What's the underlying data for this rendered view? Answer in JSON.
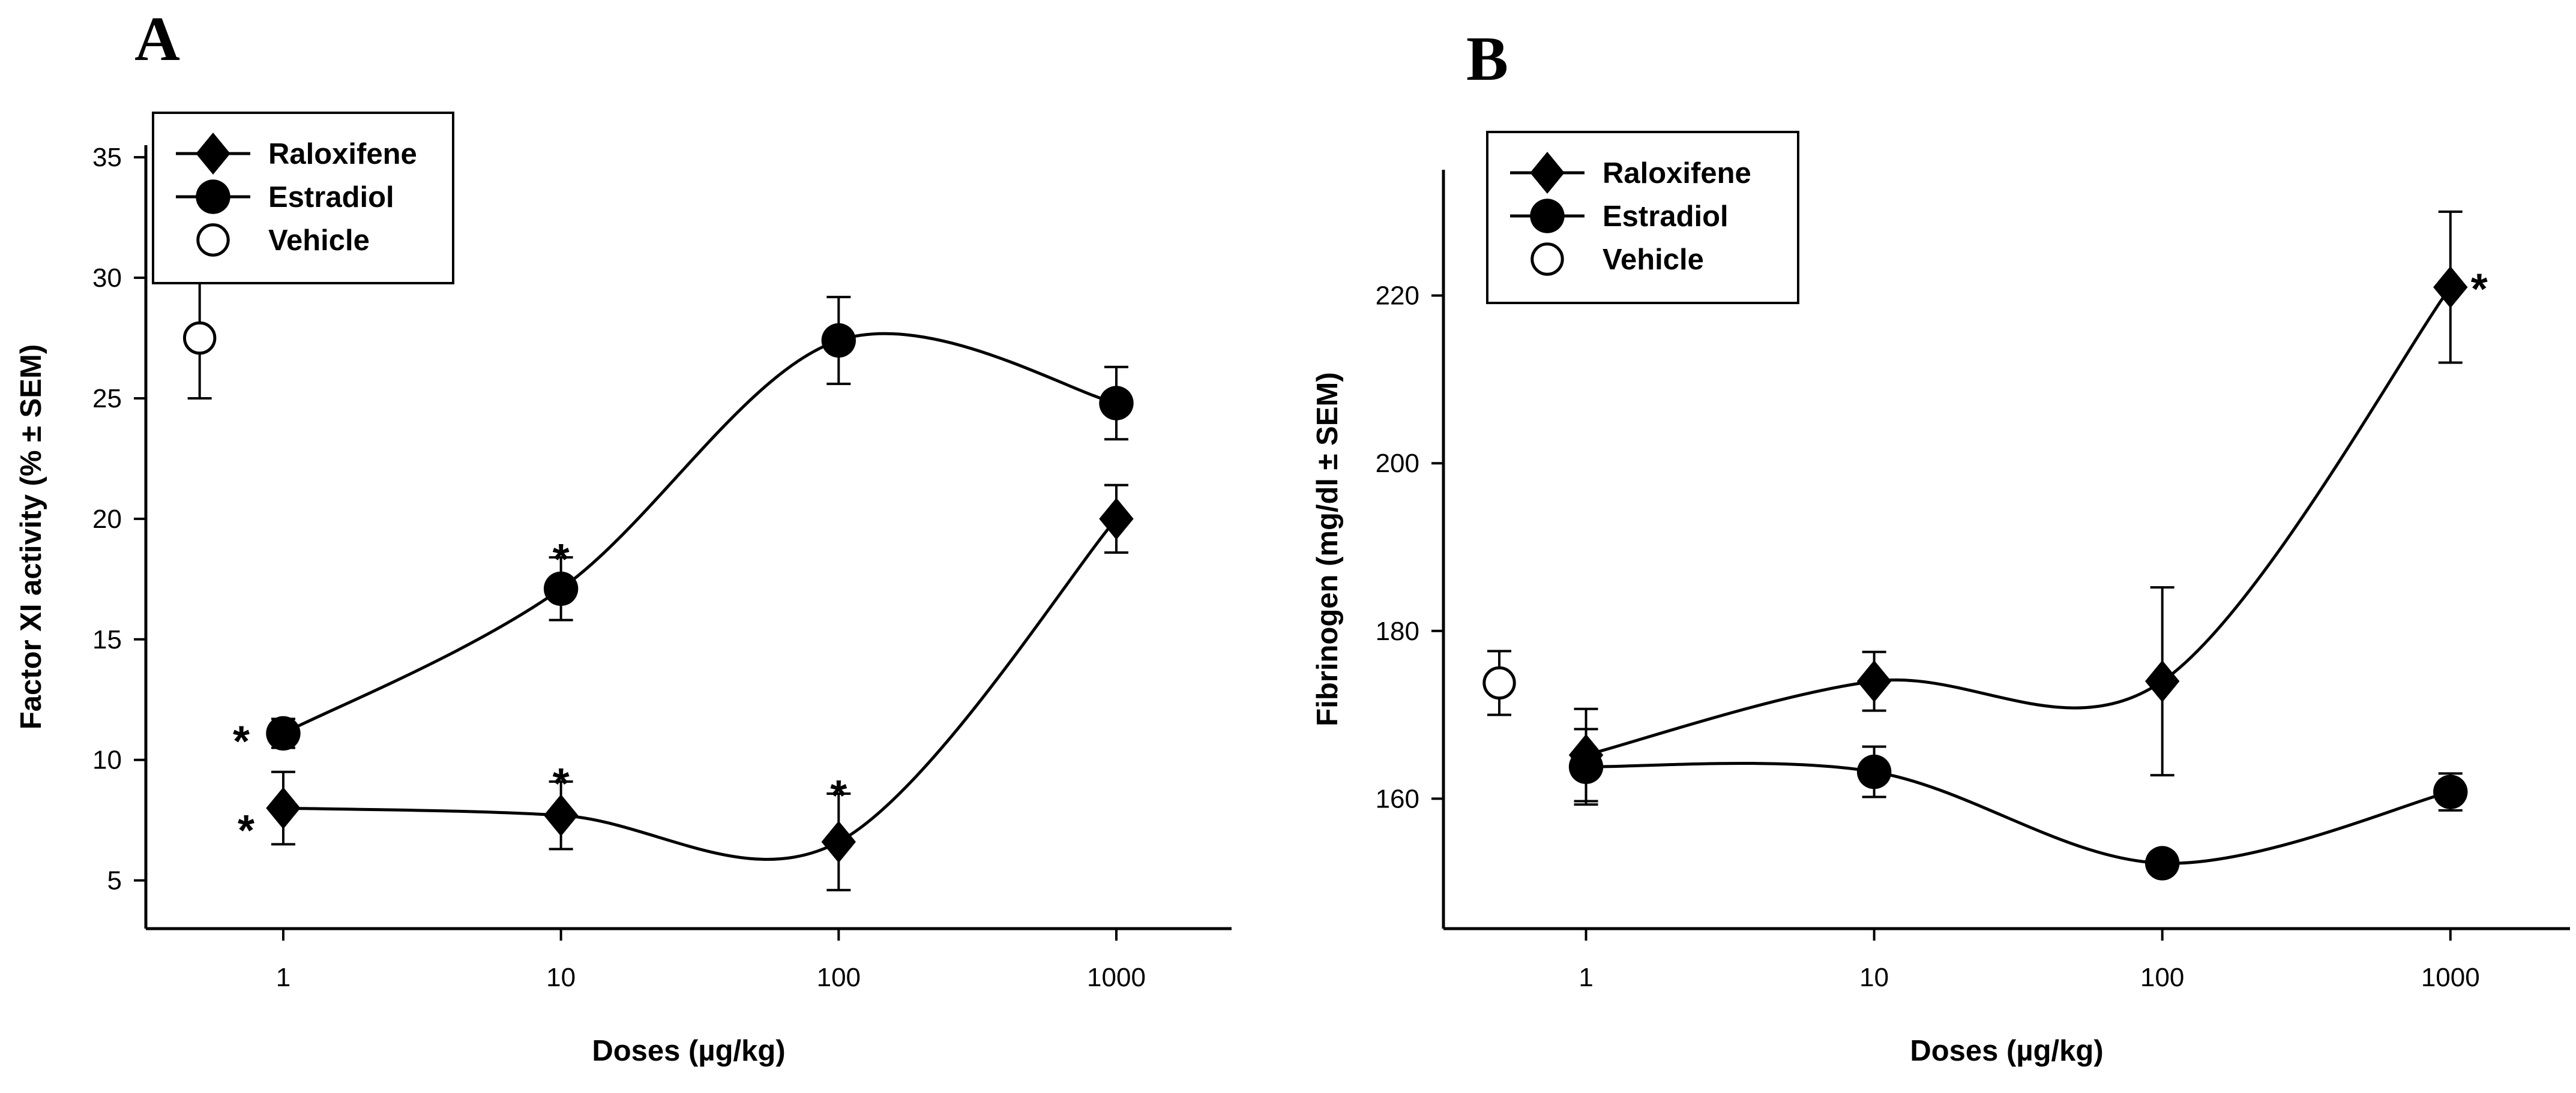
{
  "chart_data": [
    {
      "type": "line",
      "panel_label": "A",
      "title": "",
      "xlabel": "Doses (µg/kg)",
      "ylabel": "Factor XI activity (% ± SEM)",
      "xscale": "log",
      "xlim": [
        0.32,
        2600
      ],
      "ylim": [
        3,
        35.5
      ],
      "xticks": [
        1,
        10,
        100,
        1000
      ],
      "xtick_labels": [
        "1",
        "10",
        "100",
        "1000"
      ],
      "yticks": [
        5,
        10,
        15,
        20,
        25,
        30,
        35
      ],
      "ytick_labels": [
        "5",
        "10",
        "15",
        "20",
        "25",
        "30",
        "35"
      ],
      "grid": false,
      "legend_position": "top-left",
      "series": [
        {
          "name": "Raloxifene",
          "marker": "diamond",
          "x": [
            1,
            10,
            100,
            1000
          ],
          "y": [
            8.0,
            7.7,
            6.6,
            20.0
          ],
          "err": [
            1.5,
            1.4,
            2.0,
            1.4
          ]
        },
        {
          "name": "Estradiol",
          "marker": "circle",
          "x": [
            1,
            10,
            100,
            1000
          ],
          "y": [
            11.1,
            17.1,
            27.4,
            24.8
          ],
          "err": [
            0.6,
            1.3,
            1.8,
            1.5
          ]
        },
        {
          "name": "Vehicle",
          "marker": "open-circle",
          "x": [
            0.5
          ],
          "y": [
            27.5
          ],
          "err": [
            2.5
          ]
        }
      ],
      "annotations": [
        {
          "text": "*",
          "series": "Raloxifene",
          "x": 1
        },
        {
          "text": "*",
          "series": "Raloxifene",
          "x": 10
        },
        {
          "text": "*",
          "series": "Raloxifene",
          "x": 100
        },
        {
          "text": "*",
          "series": "Estradiol",
          "x": 1
        },
        {
          "text": "*",
          "series": "Estradiol",
          "x": 10
        }
      ]
    },
    {
      "type": "line",
      "panel_label": "B",
      "title": "",
      "xlabel": "Doses (µg/kg)",
      "ylabel": "Fibrinogen (mg/dl ± SEM)",
      "xscale": "log",
      "xlim": [
        0.32,
        2600
      ],
      "ylim": [
        144.5,
        235
      ],
      "xticks": [
        1,
        10,
        100,
        1000
      ],
      "xtick_labels": [
        "1",
        "10",
        "100",
        "1000"
      ],
      "yticks": [
        160,
        180,
        200,
        220
      ],
      "ytick_labels": [
        "160",
        "180",
        "200",
        "220"
      ],
      "grid": false,
      "legend_position": "top-left",
      "series": [
        {
          "name": "Raloxifene",
          "marker": "diamond",
          "x": [
            1,
            10,
            100,
            1000
          ],
          "y": [
            165.2,
            174.0,
            174.0,
            221.0
          ],
          "err": [
            5.5,
            3.5,
            11.2,
            9.0
          ]
        },
        {
          "name": "Estradiol",
          "marker": "circle",
          "x": [
            1,
            10,
            100,
            1000
          ],
          "y": [
            163.8,
            163.2,
            152.3,
            160.8
          ],
          "err": [
            4.5,
            3.0,
            1.2,
            2.2
          ]
        },
        {
          "name": "Vehicle",
          "marker": "open-circle",
          "x": [
            0.5
          ],
          "y": [
            173.8
          ],
          "err": [
            3.8
          ]
        }
      ],
      "annotations": [
        {
          "text": "*",
          "series": "Raloxifene",
          "x": 1000
        }
      ]
    }
  ]
}
